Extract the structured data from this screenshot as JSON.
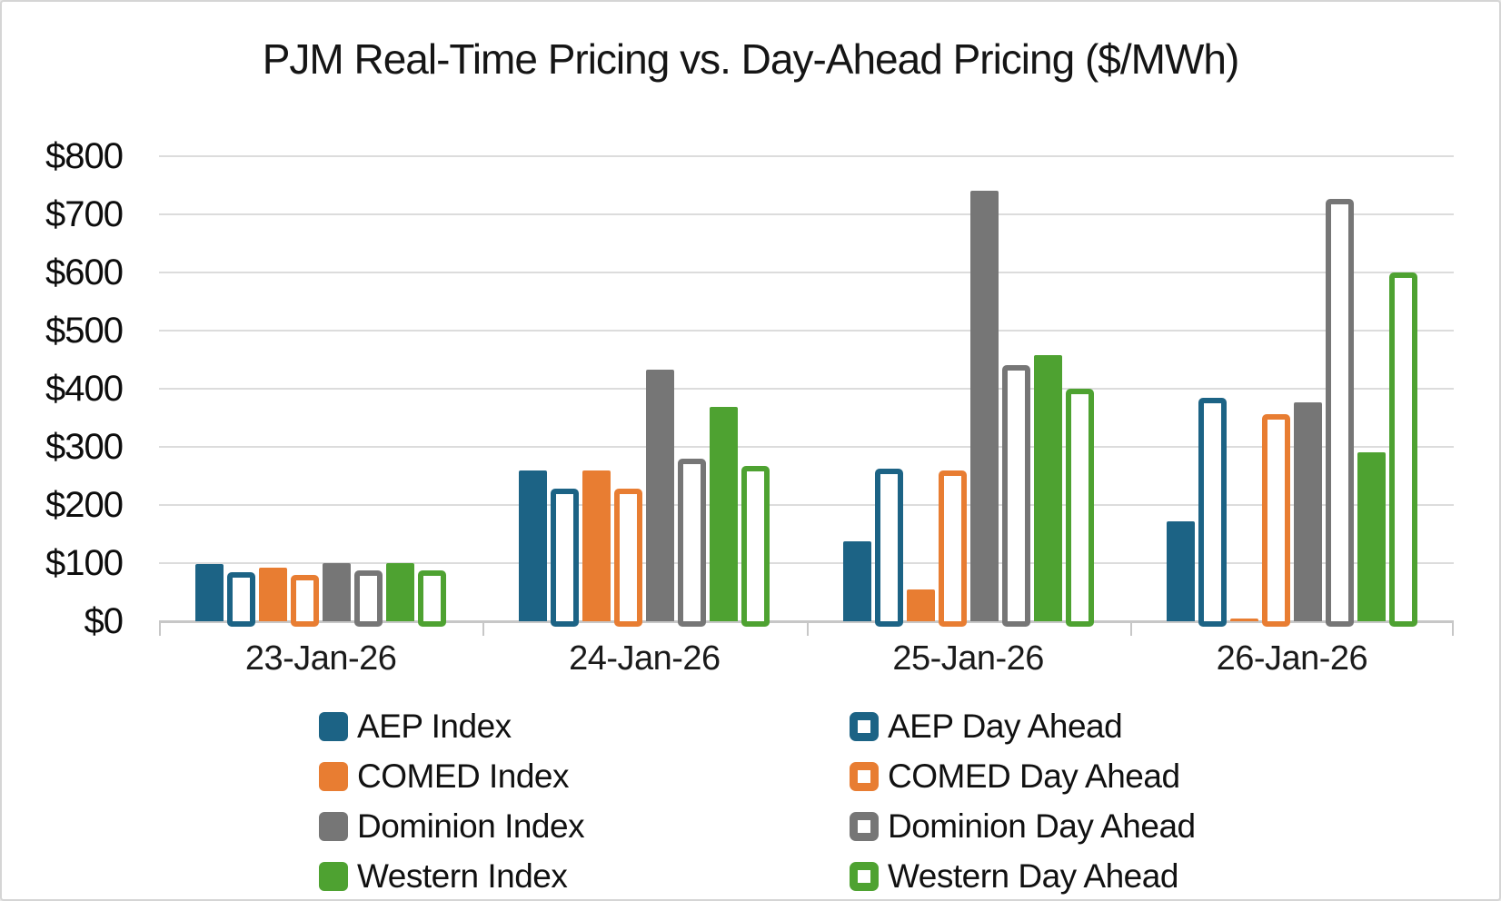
{
  "chart_data": {
    "type": "bar",
    "title": "PJM Real-Time Pricing vs. Day-Ahead Pricing ($/MWh)",
    "categories": [
      "23-Jan-26",
      "24-Jan-26",
      "25-Jan-26",
      "26-Jan-26"
    ],
    "series": [
      {
        "name": "AEP Index",
        "style": "solid",
        "color": "#1C6385",
        "values": [
          98,
          260,
          138,
          172
        ]
      },
      {
        "name": "AEP Day Ahead",
        "style": "outline",
        "color": "#1C6385",
        "values": [
          85,
          228,
          262,
          385
        ]
      },
      {
        "name": "COMED Index",
        "style": "solid",
        "color": "#E87D32",
        "values": [
          92,
          260,
          55,
          5
        ]
      },
      {
        "name": "COMED Day Ahead",
        "style": "outline",
        "color": "#E87D32",
        "values": [
          80,
          228,
          260,
          357
        ]
      },
      {
        "name": "Dominion Index",
        "style": "solid",
        "color": "#767676",
        "values": [
          100,
          433,
          740,
          377
        ]
      },
      {
        "name": "Dominion Day Ahead",
        "style": "outline",
        "color": "#767676",
        "values": [
          87,
          280,
          440,
          727
        ]
      },
      {
        "name": "Western Index",
        "style": "solid",
        "color": "#4EA231",
        "values": [
          100,
          368,
          458,
          291
        ]
      },
      {
        "name": "Western Day Ahead",
        "style": "outline",
        "color": "#4EA231",
        "values": [
          88,
          267,
          400,
          600
        ]
      }
    ],
    "ylim": [
      0,
      800
    ],
    "ytick_step": 100,
    "ytick_labels": [
      "$0",
      "$100",
      "$200",
      "$300",
      "$400",
      "$500",
      "$600",
      "$700",
      "$800"
    ],
    "grid": true,
    "legend_position": "bottom-two-columns",
    "colors": {
      "gridline": "#DCDCDC",
      "axis": "#C7C7C7",
      "text": "#111111",
      "background": "#FFFFFF",
      "frame_border": "#D5D5D5"
    }
  }
}
